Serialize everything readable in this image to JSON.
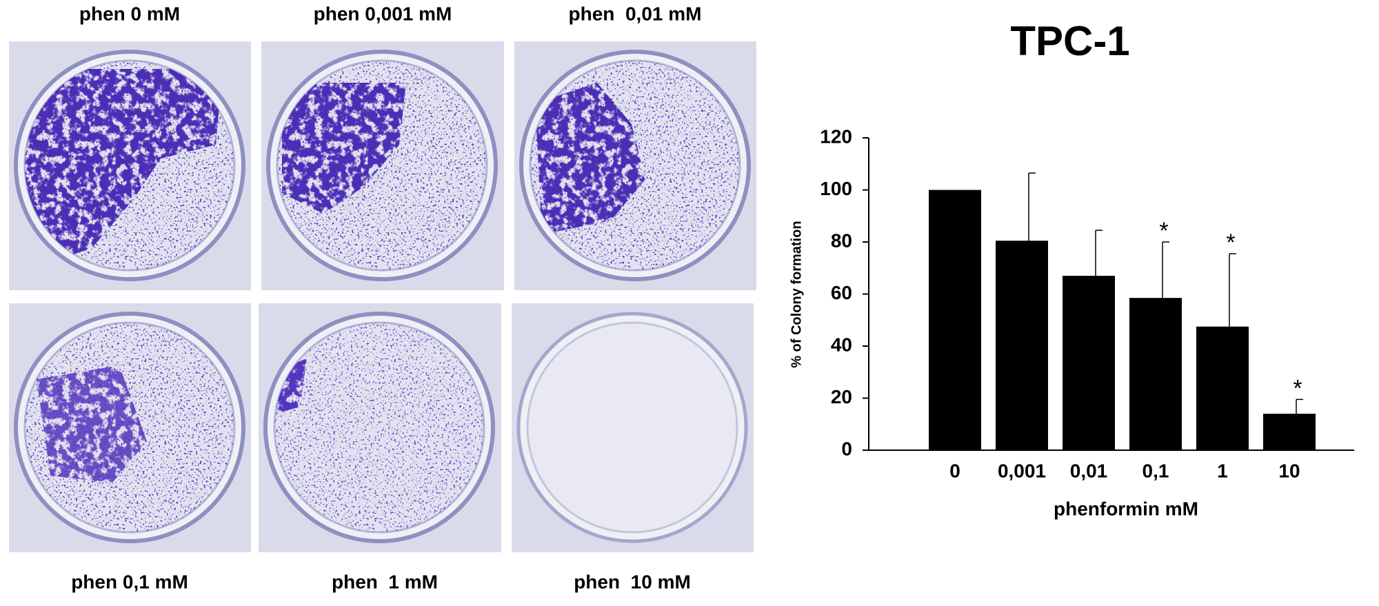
{
  "panel_labels": [
    "phen 0 mM",
    "phen 0,001 mM",
    "phen  0,01 mM",
    "phen 0,1 mM",
    "phen  1 mM",
    "phen  10 mM"
  ],
  "chart_data": {
    "type": "bar",
    "title": "TPC-1",
    "ylabel": "% of Colony formation",
    "xlabel": "phenformin mM",
    "categories": [
      "0",
      "0,001",
      "0,01",
      "0,1",
      "1",
      "10"
    ],
    "values": [
      100,
      80.5,
      67,
      58.5,
      47.5,
      14
    ],
    "errors": [
      null,
      26,
      17.5,
      21.5,
      28,
      5.5
    ],
    "significance": [
      null,
      null,
      null,
      "*",
      "*",
      "*"
    ],
    "color": "#000000",
    "ylim": [
      0,
      120
    ],
    "yticks": [
      0,
      20,
      40,
      60,
      80,
      100,
      120
    ],
    "grid": false
  }
}
